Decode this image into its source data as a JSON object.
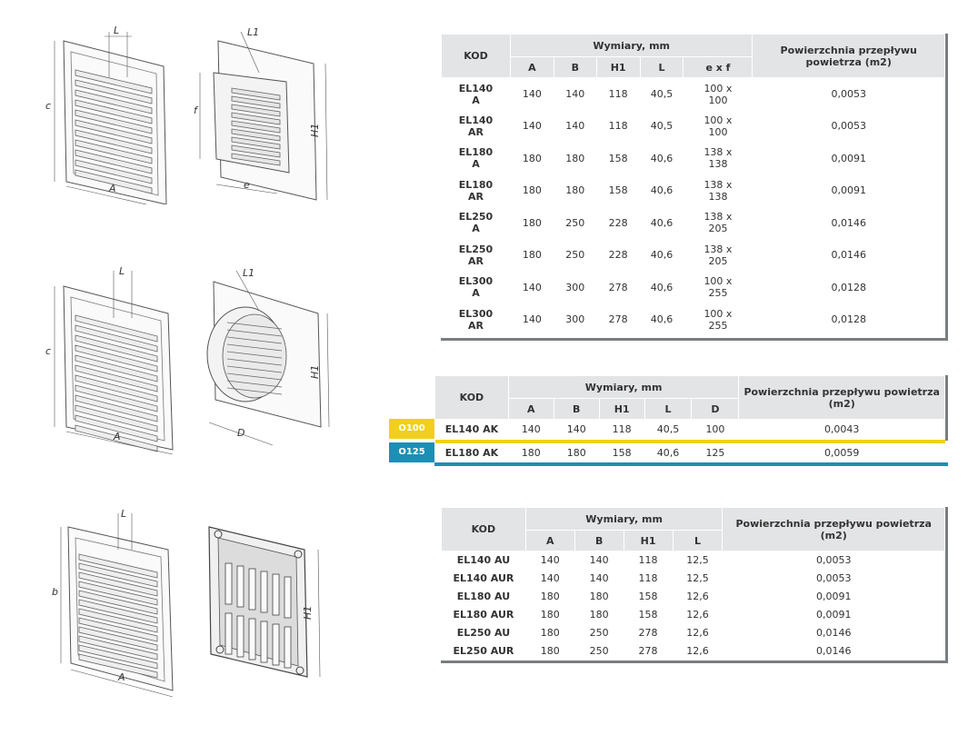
{
  "table1": {
    "header": {
      "kod": "KOD",
      "wymiary": "Wymiary, mm",
      "powierzchnia": "Powierzchnia przepływu powietrza (m2)",
      "cols": [
        "A",
        "B",
        "H1",
        "L",
        "e x f"
      ]
    },
    "rows": [
      {
        "kod": "EL140 A",
        "a": "140",
        "b": "140",
        "h1": "118",
        "l": "40,5",
        "exf": "100 x 100",
        "p": "0,0053"
      },
      {
        "kod": "EL140 AR",
        "a": "140",
        "b": "140",
        "h1": "118",
        "l": "40,5",
        "exf": "100 x 100",
        "p": "0,0053"
      },
      {
        "kod": "EL180 A",
        "a": "180",
        "b": "180",
        "h1": "158",
        "l": "40,6",
        "exf": "138 x 138",
        "p": "0,0091"
      },
      {
        "kod": "EL180 AR",
        "a": "180",
        "b": "180",
        "h1": "158",
        "l": "40,6",
        "exf": "138 x 138",
        "p": "0,0091"
      },
      {
        "kod": "EL250 A",
        "a": "180",
        "b": "250",
        "h1": "228",
        "l": "40,6",
        "exf": "138 x 205",
        "p": "0,0146"
      },
      {
        "kod": "EL250 AR",
        "a": "180",
        "b": "250",
        "h1": "228",
        "l": "40,6",
        "exf": "138 x 205",
        "p": "0,0146"
      },
      {
        "kod": "EL300 A",
        "a": "140",
        "b": "300",
        "h1": "278",
        "l": "40,6",
        "exf": "100 x 255",
        "p": "0,0128"
      },
      {
        "kod": "EL300 AR",
        "a": "140",
        "b": "300",
        "h1": "278",
        "l": "40,6",
        "exf": "100 x 255",
        "p": "0,0128"
      }
    ]
  },
  "table2": {
    "header": {
      "kod": "KOD",
      "wymiary": "Wymiary, mm",
      "powierzchnia": "Powierzchnia przepływu powietrza (m2)",
      "cols": [
        "A",
        "B",
        "H1",
        "L",
        "D"
      ]
    },
    "rows": [
      {
        "tag": "O100",
        "tag_color": "#f2cf1d",
        "kod": "EL140 AK",
        "a": "140",
        "b": "140",
        "h1": "118",
        "l": "40,5",
        "d": "100",
        "p": "0,0043"
      },
      {
        "tag": "O125",
        "tag_color": "#1c8fb5",
        "kod": "EL180 AK",
        "a": "180",
        "b": "180",
        "h1": "158",
        "l": "40,6",
        "d": "125",
        "p": "0,0059"
      }
    ]
  },
  "table3": {
    "header": {
      "kod": "KOD",
      "wymiary": "Wymiary, mm",
      "powierzchnia": "Powierzchnia przepływu powietrza (m2)",
      "cols": [
        "A",
        "B",
        "H1",
        "L"
      ]
    },
    "rows": [
      {
        "kod": "EL140 AU",
        "a": "140",
        "b": "140",
        "h1": "118",
        "l": "12,5",
        "p": "0,0053"
      },
      {
        "kod": "EL140 AUR",
        "a": "140",
        "b": "140",
        "h1": "118",
        "l": "12,5",
        "p": "0,0053"
      },
      {
        "kod": "EL180 AU",
        "a": "180",
        "b": "180",
        "h1": "158",
        "l": "12,6",
        "p": "0,0091"
      },
      {
        "kod": "EL180 AUR",
        "a": "180",
        "b": "180",
        "h1": "158",
        "l": "12,6",
        "p": "0,0091"
      },
      {
        "kod": "EL250 AU",
        "a": "180",
        "b": "250",
        "h1": "278",
        "l": "12,6",
        "p": "0,0146"
      },
      {
        "kod": "EL250 AUR",
        "a": "180",
        "b": "250",
        "h1": "278",
        "l": "12,6",
        "p": "0,0146"
      }
    ]
  },
  "drawings": {
    "row1": {
      "front_labels": [
        "L",
        "c",
        "A"
      ],
      "back_labels": [
        "L1",
        "f",
        "H1",
        "e"
      ]
    },
    "row2": {
      "front_labels": [
        "L",
        "c",
        "A"
      ],
      "back_labels": [
        "L1",
        "H1",
        "D"
      ]
    },
    "row3": {
      "front_labels": [
        "L",
        "b",
        "A"
      ],
      "back_labels": [
        "H1"
      ]
    }
  },
  "colors": {
    "header_bg": "#e3e4e6",
    "accent_bar": "#7a7d80",
    "tag_yellow": "#f2cf1d",
    "tag_blue": "#1c8fb5"
  }
}
